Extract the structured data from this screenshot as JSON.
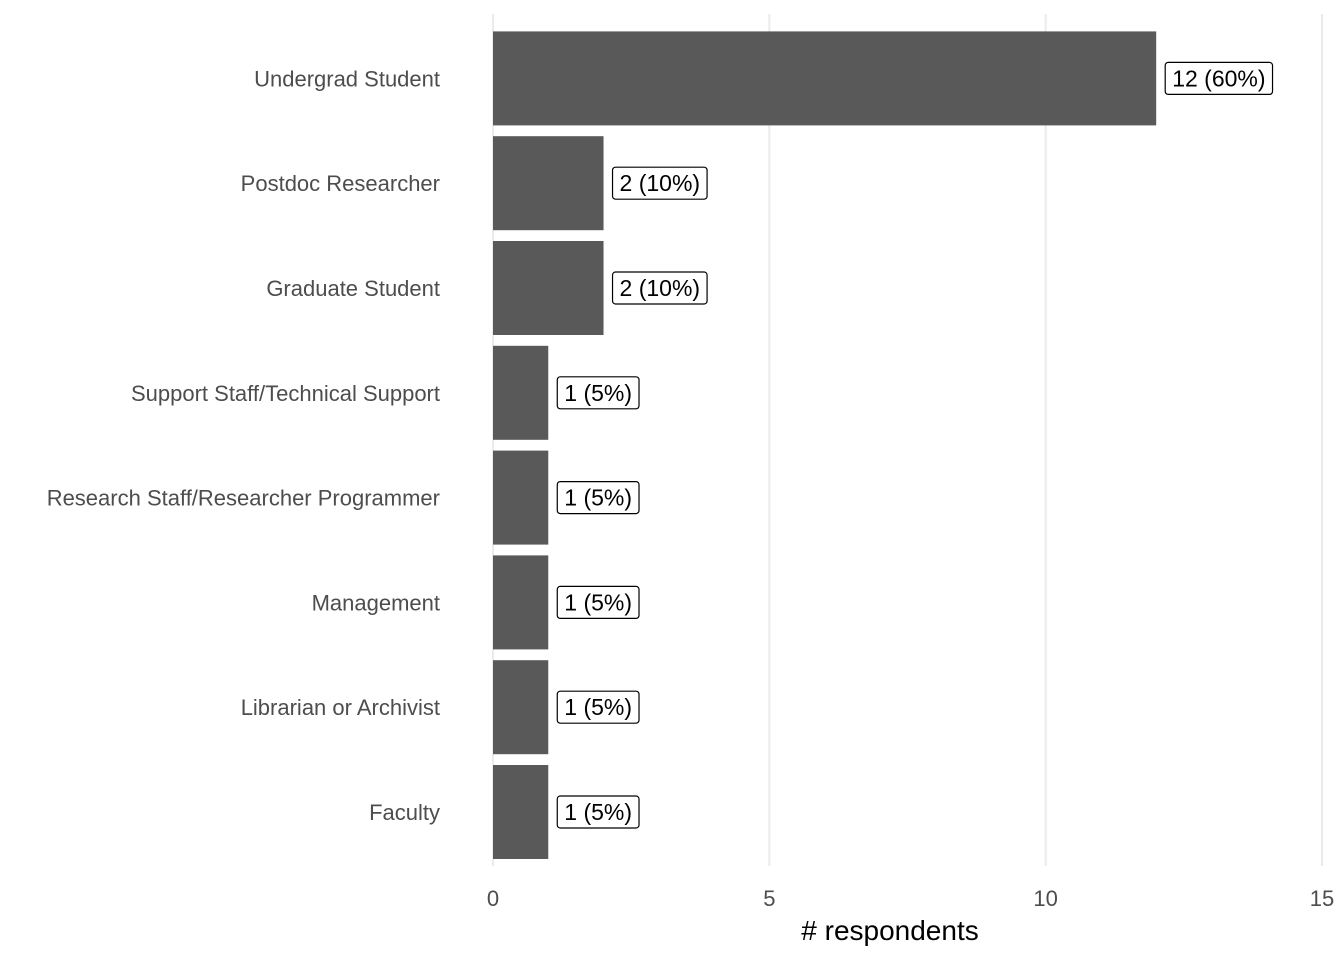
{
  "chart_data": {
    "type": "bar",
    "orientation": "horizontal",
    "categories": [
      "Undergrad Student",
      "Postdoc Researcher",
      "Graduate Student",
      "Support Staff/Technical Support",
      "Research Staff/Researcher Programmer",
      "Management",
      "Librarian or Archivist",
      "Faculty"
    ],
    "values": [
      12,
      2,
      2,
      1,
      1,
      1,
      1,
      1
    ],
    "data_labels": [
      "12 (60%)",
      "2 (10%)",
      "2 (10%)",
      "1 (5%)",
      "1 (5%)",
      "1 (5%)",
      "1 (5%)",
      "1 (5%)"
    ],
    "xlabel": "# respondents",
    "ylabel": "",
    "xlim": [
      0,
      15
    ],
    "xticks": [
      0,
      5,
      10,
      15
    ],
    "grid": "vertical",
    "legend": "none",
    "bar_color": "#595959"
  }
}
